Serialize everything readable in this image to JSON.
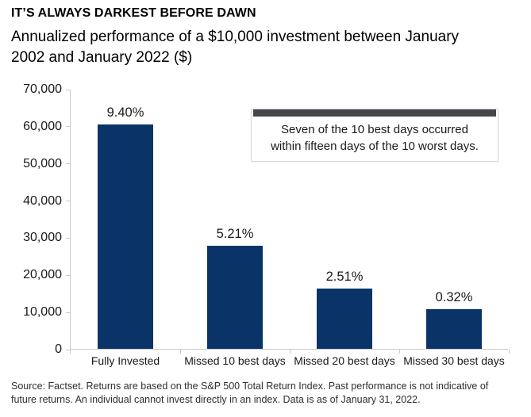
{
  "header": {
    "title": "IT’S ALWAYS DARKEST BEFORE DAWN",
    "subtitle": "Annualized performance of a $10,000 investment between January 2002 and January 2022 ($)",
    "subtitle_lines": [
      "Annualized performance of a $10,000 investment between January",
      "2002 and January 2022 ($)"
    ]
  },
  "chart_data": {
    "type": "bar",
    "title": "IT’S ALWAYS DARKEST BEFORE DAWN",
    "subtitle": "Annualized performance of a $10,000 investment between January 2002 and January 2022 ($)",
    "categories": [
      "Fully Invested",
      "Missed 10 best days",
      "Missed 20 best days",
      "Missed 30 best days"
    ],
    "values": [
      60300,
      27700,
      16300,
      10700
    ],
    "bar_labels": [
      "9.40%",
      "5.21%",
      "2.51%",
      "0.32%"
    ],
    "xlabel": "",
    "ylabel": "",
    "ylim": [
      0,
      70000
    ],
    "yticks": [
      70000,
      60000,
      50000,
      40000,
      30000,
      20000,
      10000,
      0
    ],
    "ytick_labels": [
      "70,000",
      "60,000",
      "50,000",
      "40,000",
      "30,000",
      "20,000",
      "10,000",
      "0"
    ],
    "grid": false,
    "legend_position": "none",
    "bar_color": "#0a3468",
    "axis_color": "#c9c9c9"
  },
  "annotation": {
    "text": "Seven of the 10 best days occurred within fifteen days of the 10 worst days.",
    "lines": [
      "Seven of the 10 best days occurred",
      "within fifteen days of the 10 worst days."
    ],
    "accent_bar_color": "#43474c"
  },
  "footer": {
    "source_text": "Source: Factset. Returns are based on the S&P 500 Total Return Index. Past performance is not indicative of future returns. An individual cannot invest directly in an index. Data is as of January 31, 2022.",
    "source_lines": [
      "Source: Factset. Returns are based on the S&P 500 Total Return Index. Past performance is not indicative of",
      "future returns. An individual cannot invest directly in an index. Data is as of January 31, 2022."
    ]
  }
}
